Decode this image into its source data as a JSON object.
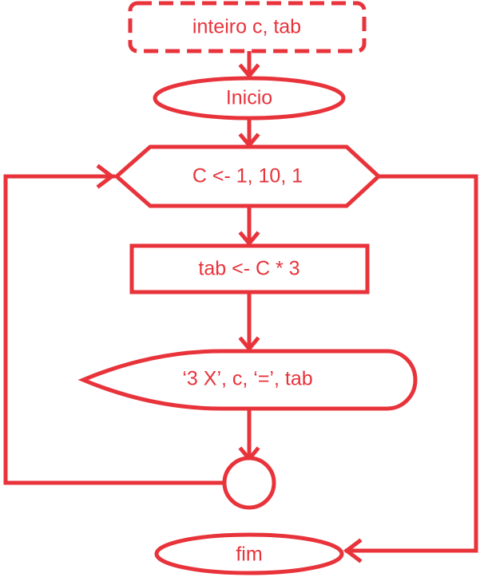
{
  "flowchart": {
    "color": "#e8333b",
    "declaration": "inteiro c, tab",
    "start": "Inicio",
    "loop": "C <- 1, 10, 1",
    "process": "tab <- C * 3",
    "display": "‘3 X’, c, ‘=’, tab",
    "end": "fim"
  }
}
